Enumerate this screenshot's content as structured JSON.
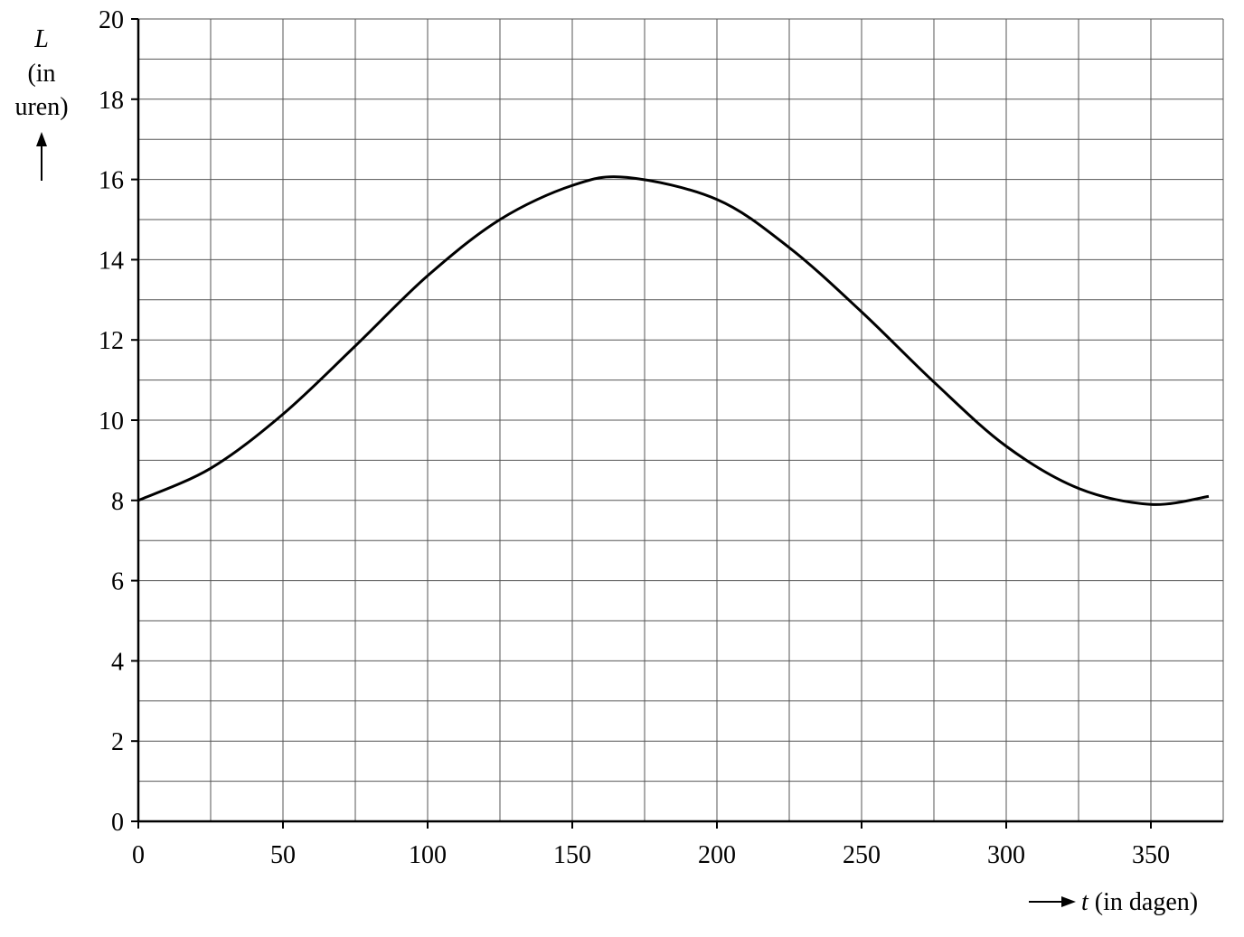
{
  "chart_data": {
    "type": "line",
    "title": "",
    "ylabel_symbol": "L",
    "ylabel_unit_line1": "(in",
    "ylabel_unit_line2": "uren)",
    "xlabel_symbol": "t",
    "xlabel_unit": "(in dagen)",
    "xlim": [
      0,
      375
    ],
    "ylim": [
      0,
      20
    ],
    "x_major_ticks": [
      0,
      50,
      100,
      150,
      200,
      250,
      300,
      350
    ],
    "x_tick_labels": [
      "0",
      "50",
      "100",
      "150",
      "200",
      "250",
      "300",
      "350"
    ],
    "y_major_ticks": [
      0,
      2,
      4,
      6,
      8,
      10,
      12,
      14,
      16,
      18,
      20
    ],
    "y_tick_labels": [
      "0",
      "2",
      "4",
      "6",
      "8",
      "10",
      "12",
      "14",
      "16",
      "18",
      "20"
    ],
    "x_grid_step": 25,
    "y_grid_step": 1,
    "grid": true,
    "line_color": "#000000",
    "grid_color": "#555555",
    "series": [
      {
        "x": [
          0,
          25,
          50,
          75,
          100,
          125,
          150,
          169,
          200,
          225,
          250,
          275,
          300,
          325,
          350,
          370
        ],
        "y": [
          8.0,
          8.8,
          10.15,
          11.85,
          13.6,
          15.0,
          15.85,
          16.05,
          15.5,
          14.3,
          12.7,
          10.95,
          9.35,
          8.3,
          7.9,
          8.1
        ]
      }
    ]
  }
}
